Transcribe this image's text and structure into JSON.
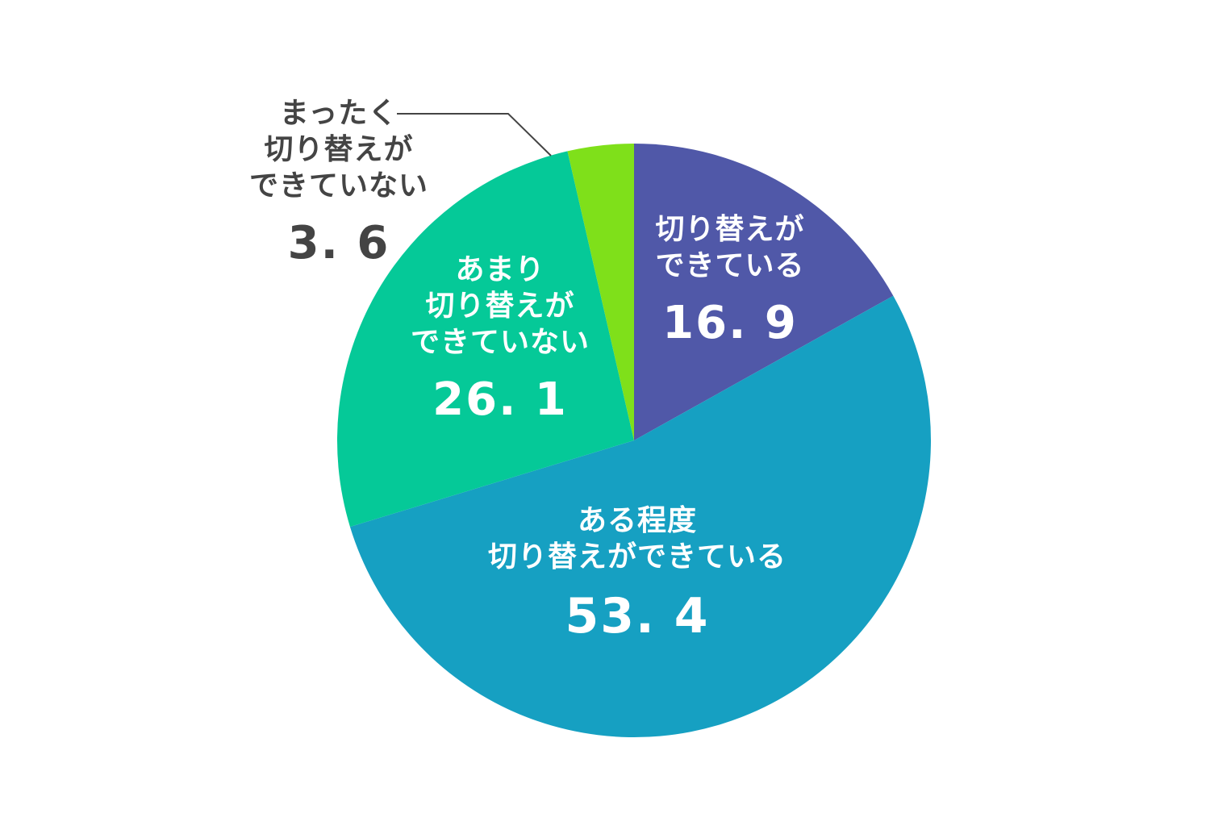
{
  "chart_data": {
    "type": "pie",
    "title": "",
    "start_angle_deg": 0,
    "direction": "clockwise",
    "slices": [
      {
        "label": "切り替えが\nできている",
        "value": 16.9,
        "display": "16.9",
        "color": "#5058A8"
      },
      {
        "label": "ある程度\n切り替えができている",
        "value": 53.4,
        "display": "53.4",
        "color": "#16A0C2"
      },
      {
        "label": "あまり\n切り替えが\nできていない",
        "value": 26.1,
        "display": "26.1",
        "color": "#05C998"
      },
      {
        "label": "まったく\n切り替えが\nできていない",
        "value": 3.6,
        "display": "3.6",
        "color": "#7FE01A"
      }
    ],
    "categories": [
      "切り替えができている",
      "ある程度切り替えができている",
      "あまり切り替えができていない",
      "まったく切り替えができていない"
    ],
    "values": [
      16.9,
      53.4,
      26.1,
      3.6
    ],
    "unit": "%"
  },
  "labels": {
    "s0": {
      "cat": "切り替えが\nできている",
      "val": "16. 9"
    },
    "s1": {
      "cat": "ある程度\n切り替えができている",
      "val": "53. 4"
    },
    "s2": {
      "cat": "あまり\n切り替えが\nできていない",
      "val": "26. 1"
    },
    "s3": {
      "cat": "まったく\n切り替えが\nできていない",
      "val": "3. 6"
    }
  }
}
